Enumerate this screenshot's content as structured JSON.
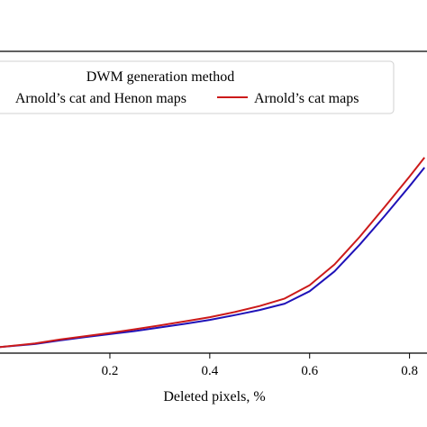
{
  "chart_data": {
    "type": "line",
    "xlabel": "Deleted pixels, %",
    "ylabel": "",
    "title": "",
    "xlim": [
      -0.02,
      0.835
    ],
    "ylim": [
      0,
      1
    ],
    "x_ticks": [
      0.2,
      0.4,
      0.6,
      0.8
    ],
    "x_tick_labels": [
      "0.2",
      "0.4",
      "0.6",
      "0.8"
    ],
    "grid": false,
    "legend": {
      "title": "DWM generation method",
      "placement": "top",
      "columns": 2
    },
    "series": [
      {
        "name": "Arnold’s cat and Henon maps",
        "color": "#1f12b8",
        "x": [
          -0.02,
          0.05,
          0.1,
          0.15,
          0.2,
          0.25,
          0.3,
          0.35,
          0.4,
          0.45,
          0.5,
          0.55,
          0.6,
          0.65,
          0.7,
          0.75,
          0.8,
          0.83
        ],
        "y": [
          0.02,
          0.03,
          0.042,
          0.053,
          0.063,
          0.073,
          0.085,
          0.097,
          0.11,
          0.126,
          0.143,
          0.164,
          0.205,
          0.271,
          0.359,
          0.454,
          0.553,
          0.615
        ]
      },
      {
        "name": "Arnold’s cat maps",
        "color": "#cc1a1a",
        "x": [
          -0.02,
          0.05,
          0.1,
          0.15,
          0.2,
          0.25,
          0.3,
          0.35,
          0.4,
          0.45,
          0.5,
          0.55,
          0.6,
          0.65,
          0.7,
          0.75,
          0.8,
          0.83
        ],
        "y": [
          0.02,
          0.032,
          0.045,
          0.056,
          0.067,
          0.079,
          0.092,
          0.105,
          0.119,
          0.136,
          0.156,
          0.181,
          0.225,
          0.294,
          0.385,
          0.484,
          0.585,
          0.648
        ]
      }
    ]
  }
}
